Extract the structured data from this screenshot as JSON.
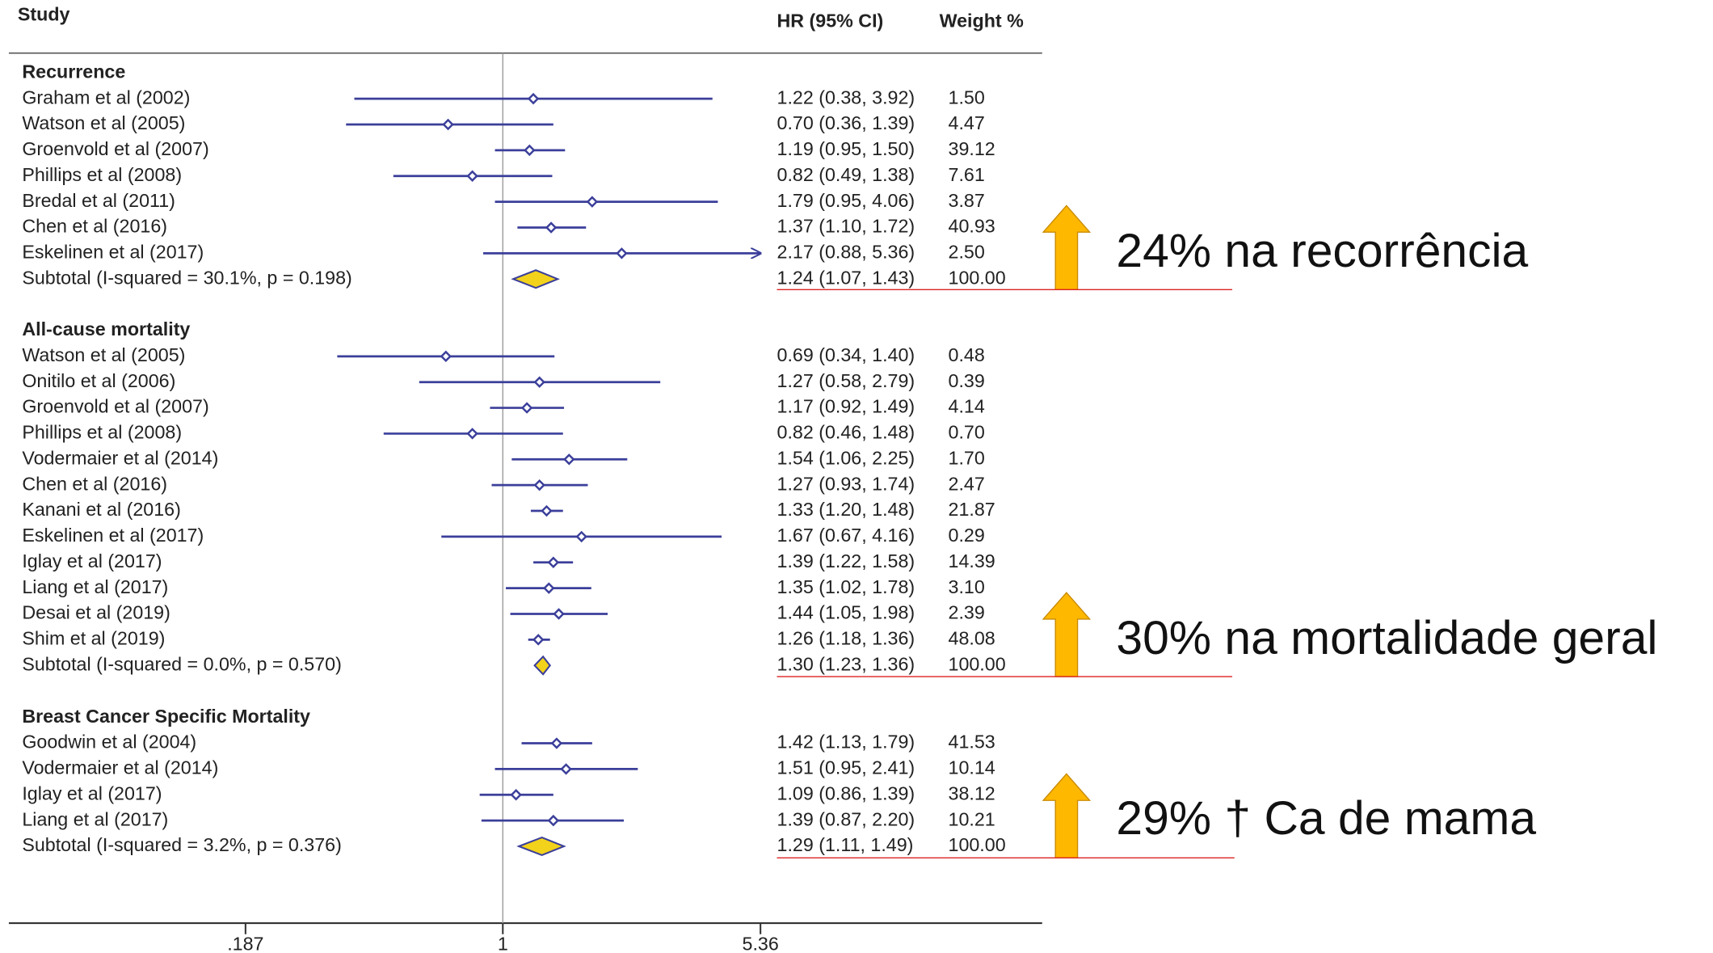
{
  "chart_data": {
    "type": "forest",
    "columns": {
      "study": "Study",
      "hr": "HR (95% CI)",
      "weight": "Weight %"
    },
    "xscale": "log",
    "xlim": [
      0.04,
      33.6
    ],
    "xticks": [
      {
        "value": 0.187,
        "label": ".187"
      },
      1,
      5.36
    ],
    "color": "#3b3f9a",
    "diamond_color": "#f2d21b",
    "groups": [
      {
        "name": "Recurrence",
        "studies": [
          {
            "name": "Graham et al (2002)",
            "hr": 1.22,
            "lo": 0.38,
            "hi": 3.92,
            "weight": 1.5,
            "hr_label": "1.22 (0.38, 3.92)",
            "weight_label": "1.50"
          },
          {
            "name": "Watson et al (2005)",
            "hr": 0.7,
            "lo": 0.36,
            "hi": 1.39,
            "weight": 4.47,
            "hr_label": "0.70 (0.36, 1.39)",
            "weight_label": "4.47"
          },
          {
            "name": "Groenvold et al (2007)",
            "hr": 1.19,
            "lo": 0.95,
            "hi": 1.5,
            "weight": 39.12,
            "hr_label": "1.19 (0.95, 1.50)",
            "weight_label": "39.12"
          },
          {
            "name": "Phillips et al (2008)",
            "hr": 0.82,
            "lo": 0.49,
            "hi": 1.38,
            "weight": 7.61,
            "hr_label": "0.82 (0.49, 1.38)",
            "weight_label": "7.61"
          },
          {
            "name": "Bredal et al (2011)",
            "hr": 1.79,
            "lo": 0.95,
            "hi": 4.06,
            "weight": 3.87,
            "hr_label": "1.79 (0.95, 4.06)",
            "weight_label": "3.87"
          },
          {
            "name": "Chen et al (2016)",
            "hr": 1.37,
            "lo": 1.1,
            "hi": 1.72,
            "weight": 40.93,
            "hr_label": "1.37 (1.10, 1.72)",
            "weight_label": "40.93"
          },
          {
            "name": "Eskelinen et al (2017)",
            "hr": 2.17,
            "lo": 0.88,
            "hi": 5.36,
            "weight": 2.5,
            "hr_label": "2.17 (0.88, 5.36)",
            "weight_label": "2.50"
          }
        ],
        "subtotal": {
          "name": "Subtotal  (I-squared = 30.1%, p = 0.198)",
          "hr": 1.24,
          "lo": 1.07,
          "hi": 1.43,
          "weight": 100,
          "hr_label": "1.24 (1.07, 1.43)",
          "weight_label": "100.00"
        }
      },
      {
        "name": "All-cause mortality",
        "studies": [
          {
            "name": "Watson et al (2005)",
            "hr": 0.69,
            "lo": 0.34,
            "hi": 1.4,
            "weight": 0.48,
            "hr_label": "0.69 (0.34, 1.40)",
            "weight_label": "0.48"
          },
          {
            "name": "Onitilo et al (2006)",
            "hr": 1.27,
            "lo": 0.58,
            "hi": 2.79,
            "weight": 0.39,
            "hr_label": "1.27 (0.58, 2.79)",
            "weight_label": "0.39"
          },
          {
            "name": "Groenvold et al (2007)",
            "hr": 1.17,
            "lo": 0.92,
            "hi": 1.49,
            "weight": 4.14,
            "hr_label": "1.17 (0.92, 1.49)",
            "weight_label": "4.14"
          },
          {
            "name": "Phillips et al (2008)",
            "hr": 0.82,
            "lo": 0.46,
            "hi": 1.48,
            "weight": 0.7,
            "hr_label": "0.82 (0.46, 1.48)",
            "weight_label": "0.70"
          },
          {
            "name": "Vodermaier et al (2014)",
            "hr": 1.54,
            "lo": 1.06,
            "hi": 2.25,
            "weight": 1.7,
            "hr_label": "1.54 (1.06, 2.25)",
            "weight_label": "1.70"
          },
          {
            "name": "Chen et al (2016)",
            "hr": 1.27,
            "lo": 0.93,
            "hi": 1.74,
            "weight": 2.47,
            "hr_label": "1.27 (0.93, 1.74)",
            "weight_label": "2.47"
          },
          {
            "name": "Kanani et al (2016)",
            "hr": 1.33,
            "lo": 1.2,
            "hi": 1.48,
            "weight": 21.87,
            "hr_label": "1.33 (1.20, 1.48)",
            "weight_label": "21.87"
          },
          {
            "name": "Eskelinen et al (2017)",
            "hr": 1.67,
            "lo": 0.67,
            "hi": 4.16,
            "weight": 0.29,
            "hr_label": "1.67 (0.67, 4.16)",
            "weight_label": "0.29"
          },
          {
            "name": "Iglay et al (2017)",
            "hr": 1.39,
            "lo": 1.22,
            "hi": 1.58,
            "weight": 14.39,
            "hr_label": "1.39 (1.22, 1.58)",
            "weight_label": "14.39"
          },
          {
            "name": "Liang et al (2017)",
            "hr": 1.35,
            "lo": 1.02,
            "hi": 1.78,
            "weight": 3.1,
            "hr_label": "1.35 (1.02, 1.78)",
            "weight_label": "3.10"
          },
          {
            "name": "Desai et al (2019)",
            "hr": 1.44,
            "lo": 1.05,
            "hi": 1.98,
            "weight": 2.39,
            "hr_label": "1.44 (1.05, 1.98)",
            "weight_label": "2.39"
          },
          {
            "name": "Shim et al (2019)",
            "hr": 1.26,
            "lo": 1.18,
            "hi": 1.36,
            "weight": 48.08,
            "hr_label": "1.26 (1.18, 1.36)",
            "weight_label": "48.08"
          }
        ],
        "subtotal": {
          "name": "Subtotal  (I-squared = 0.0%, p = 0.570)",
          "hr": 1.3,
          "lo": 1.23,
          "hi": 1.36,
          "weight": 100,
          "hr_label": "1.30 (1.23, 1.36)",
          "weight_label": "100.00"
        }
      },
      {
        "name": "Breast Cancer  Specific Mortality",
        "studies": [
          {
            "name": "Goodwin et al (2004)",
            "hr": 1.42,
            "lo": 1.13,
            "hi": 1.79,
            "weight": 41.53,
            "hr_label": "1.42 (1.13, 1.79)",
            "weight_label": "41.53"
          },
          {
            "name": "Vodermaier et al (2014)",
            "hr": 1.51,
            "lo": 0.95,
            "hi": 2.41,
            "weight": 10.14,
            "hr_label": "1.51 (0.95, 2.41)",
            "weight_label": "10.14"
          },
          {
            "name": "Iglay et al (2017)",
            "hr": 1.09,
            "lo": 0.86,
            "hi": 1.39,
            "weight": 38.12,
            "hr_label": "1.09 (0.86, 1.39)",
            "weight_label": "38.12"
          },
          {
            "name": "Liang et al (2017)",
            "hr": 1.39,
            "lo": 0.87,
            "hi": 2.2,
            "weight": 10.21,
            "hr_label": "1.39 (0.87, 2.20)",
            "weight_label": "10.21"
          }
        ],
        "subtotal": {
          "name": "Subtotal  (I-squared = 3.2%, p = 0.376)",
          "hr": 1.29,
          "lo": 1.11,
          "hi": 1.49,
          "weight": 100,
          "hr_label": "1.29 (1.11, 1.49)",
          "weight_label": "100.00"
        }
      }
    ],
    "annotations": [
      "24% na recorrência",
      "30% na mortalidade geral",
      "29% † Ca de mama"
    ]
  }
}
